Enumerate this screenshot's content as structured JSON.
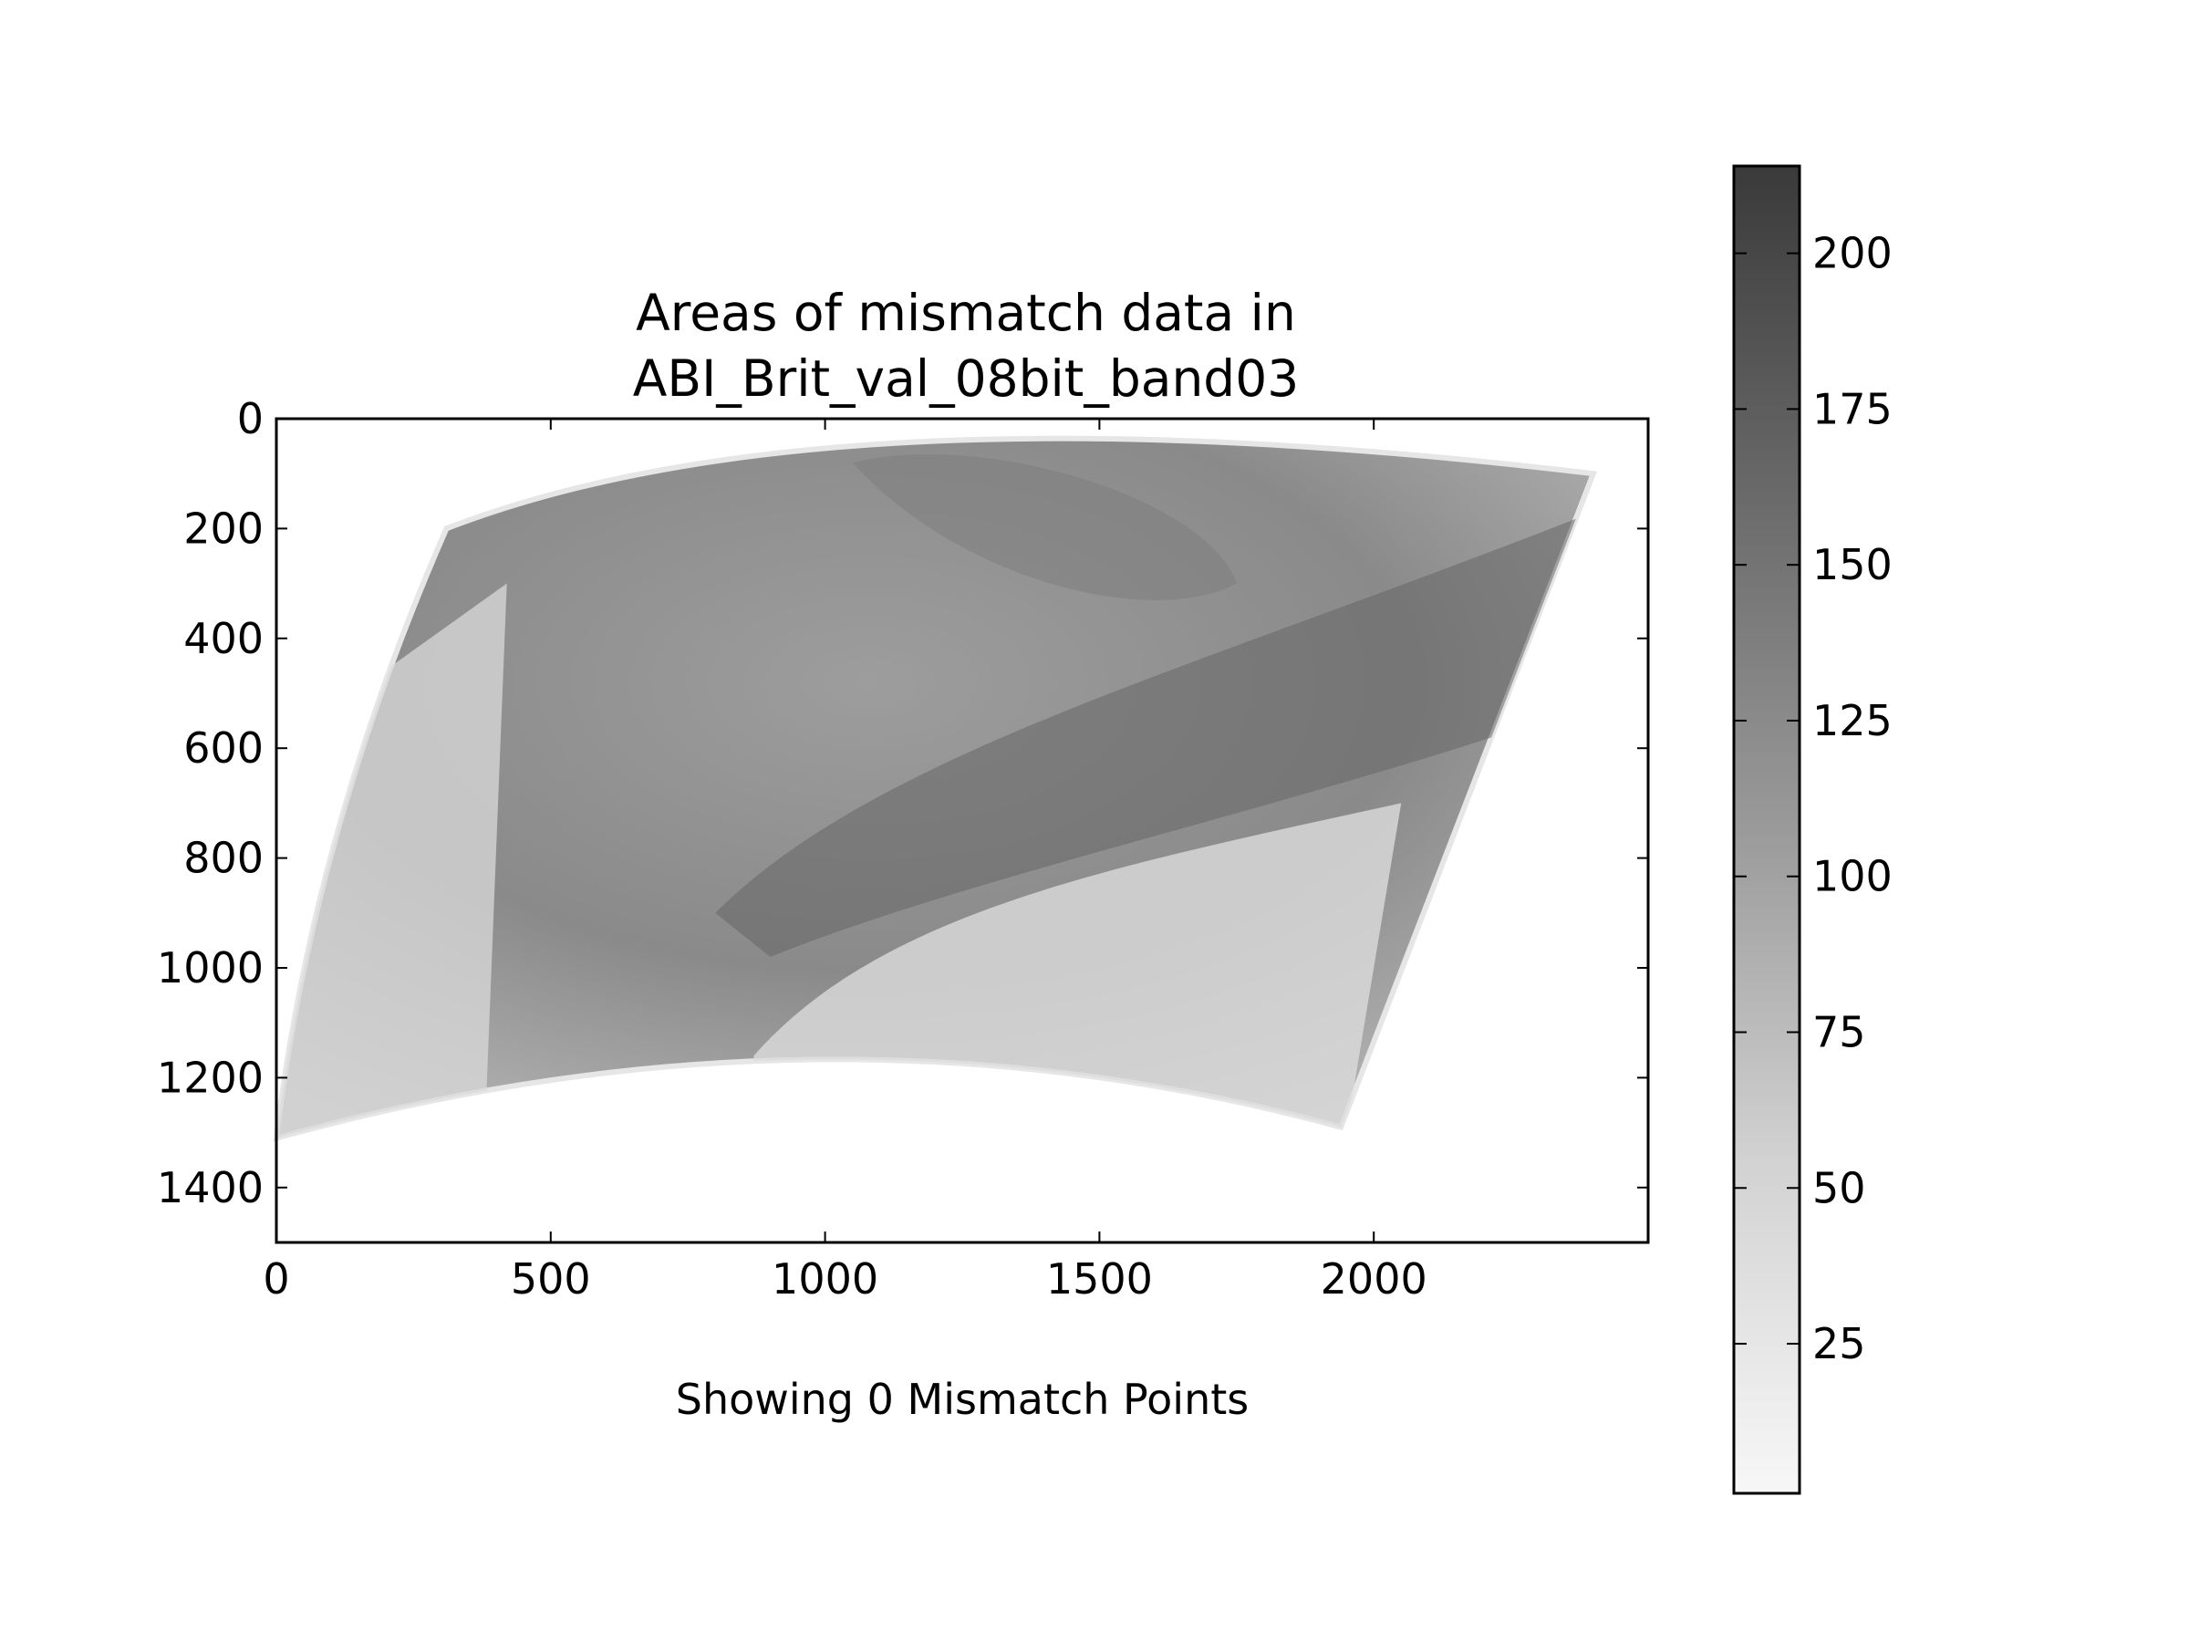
{
  "chart_data": {
    "type": "heatmap",
    "title_lines": [
      "Areas of mismatch data in",
      "ABI_Brit_val_08bit_band03"
    ],
    "caption": "Showing 0 Mismatch Points",
    "xlim": [
      0,
      2500
    ],
    "ylim": [
      1500,
      0
    ],
    "y_inverted": true,
    "x_ticks": [
      0,
      500,
      1000,
      1500,
      2000
    ],
    "y_ticks": [
      0,
      200,
      400,
      600,
      800,
      1000,
      1200,
      1400
    ],
    "grid": false,
    "colormap": "gray_r",
    "colorbar": {
      "range": [
        1,
        214
      ],
      "ticks": [
        25,
        50,
        75,
        100,
        125,
        150,
        175,
        200
      ],
      "color_low": "#f7f7f7",
      "color_high": "#3a3a3a"
    },
    "mismatch_points": 0,
    "image_extent_outline": {
      "top_left": [
        310,
        200
      ],
      "top_mid": [
        1000,
        0
      ],
      "top_right": [
        2400,
        100
      ],
      "bottom_right": [
        1940,
        1290
      ],
      "bottom_mid": [
        1000,
        1150
      ],
      "bottom_left": [
        0,
        1310
      ]
    }
  }
}
